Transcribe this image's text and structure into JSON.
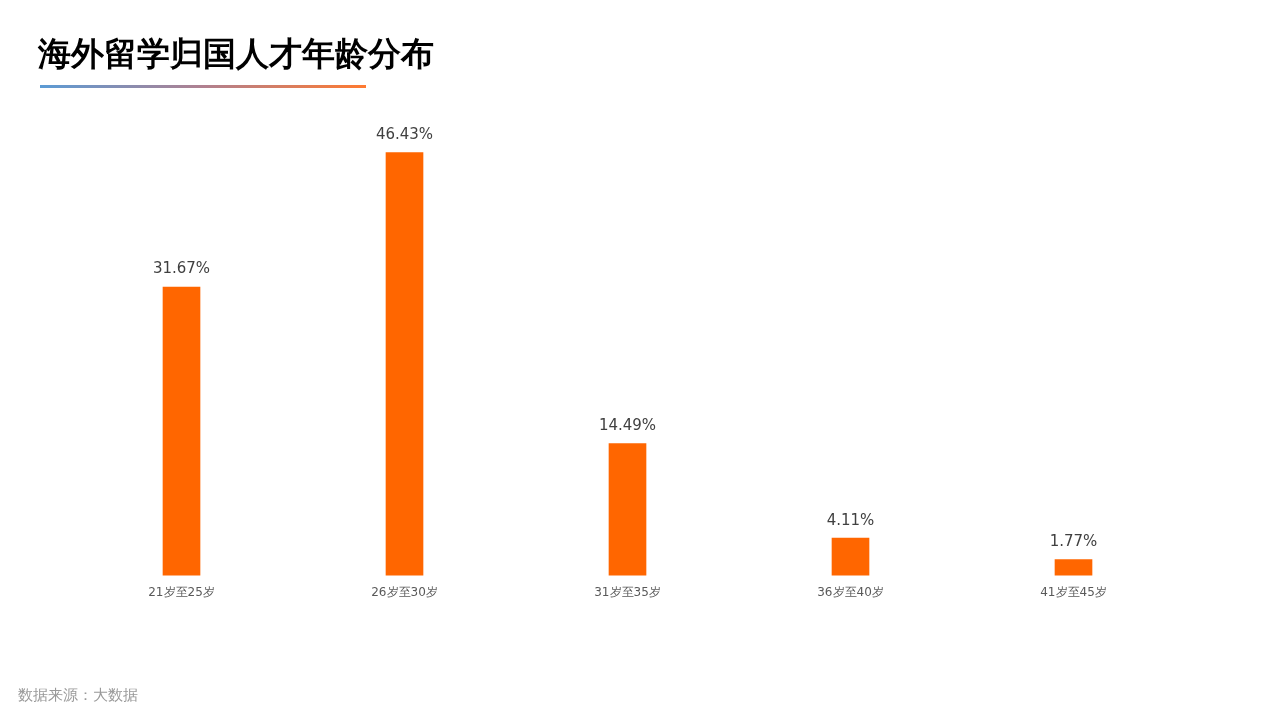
{
  "chart_data": {
    "type": "bar",
    "title": "海外留学归国人才年龄分布",
    "categories": [
      "21岁至25岁",
      "26岁至30岁",
      "31岁至35岁",
      "36岁至40岁",
      "41岁至45岁"
    ],
    "values": [
      31.67,
      46.43,
      14.49,
      4.11,
      1.77
    ],
    "value_labels": [
      "31.67%",
      "46.43%",
      "14.49%",
      "4.11%",
      "1.77%"
    ],
    "color": "#ff6600",
    "grid": false,
    "legend": false,
    "annotations": [
      "数据来源：大数据"
    ]
  }
}
